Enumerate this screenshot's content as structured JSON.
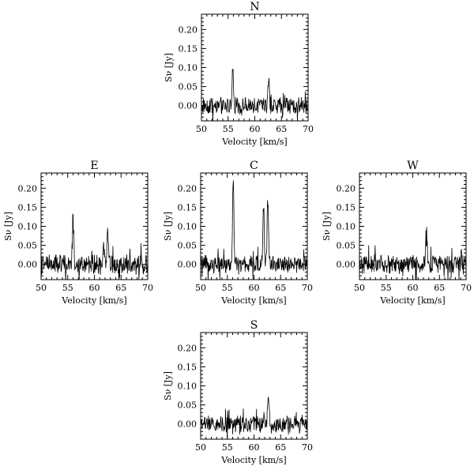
{
  "chart_data": [
    {
      "type": "line",
      "title": "N",
      "xlabel": "Velocity [km/s]",
      "ylabel": "Sν [Jy]",
      "xlim": [
        50,
        70
      ],
      "ylim": [
        -0.04,
        0.24
      ],
      "xticks": [
        "50",
        "55",
        "60",
        "65",
        "70"
      ],
      "yticks": [
        "0.00",
        "0.05",
        "0.10",
        "0.15",
        "0.20"
      ],
      "noise_amplitude": 0.012,
      "peaks": [
        {
          "v": 55.9,
          "h": 0.085
        },
        {
          "v": 62.6,
          "h": 0.06
        }
      ]
    },
    {
      "type": "line",
      "title": "E",
      "xlabel": "Velocity [km/s]",
      "ylabel": "Sν [Jy]",
      "xlim": [
        50,
        70
      ],
      "ylim": [
        -0.04,
        0.24
      ],
      "xticks": [
        "50",
        "55",
        "60",
        "65",
        "70"
      ],
      "yticks": [
        "0.00",
        "0.05",
        "0.10",
        "0.15",
        "0.20"
      ],
      "noise_amplitude": 0.014,
      "peaks": [
        {
          "v": 56.0,
          "h": 0.12
        },
        {
          "v": 61.7,
          "h": 0.06
        },
        {
          "v": 62.5,
          "h": 0.085
        }
      ]
    },
    {
      "type": "line",
      "title": "C",
      "xlabel": "Velocity [km/s]",
      "ylabel": "Sν [Jy]",
      "xlim": [
        50,
        70
      ],
      "ylim": [
        -0.04,
        0.24
      ],
      "xticks": [
        "50",
        "55",
        "60",
        "65",
        "70"
      ],
      "yticks": [
        "0.00",
        "0.05",
        "0.10",
        "0.15",
        "0.20"
      ],
      "noise_amplitude": 0.012,
      "peaks": [
        {
          "v": 56.1,
          "h": 0.22
        },
        {
          "v": 61.8,
          "h": 0.155
        },
        {
          "v": 62.6,
          "h": 0.175
        }
      ]
    },
    {
      "type": "line",
      "title": "W",
      "xlabel": "Velocity [km/s]",
      "ylabel": "Sν [Jy]",
      "xlim": [
        50,
        70
      ],
      "ylim": [
        -0.04,
        0.24
      ],
      "xticks": [
        "50",
        "55",
        "60",
        "65",
        "70"
      ],
      "yticks": [
        "0.00",
        "0.05",
        "0.10",
        "0.15",
        "0.20"
      ],
      "noise_amplitude": 0.013,
      "peaks": [
        {
          "v": 62.6,
          "h": 0.08
        }
      ]
    },
    {
      "type": "line",
      "title": "S",
      "xlabel": "Velocity [km/s]",
      "ylabel": "Sν [Jy]",
      "xlim": [
        50,
        70
      ],
      "ylim": [
        -0.04,
        0.24
      ],
      "xticks": [
        "50",
        "55",
        "60",
        "65",
        "70"
      ],
      "yticks": [
        "0.00",
        "0.05",
        "0.10",
        "0.15",
        "0.20"
      ],
      "noise_amplitude": 0.012,
      "peaks": [
        {
          "v": 62.7,
          "h": 0.09
        }
      ]
    }
  ]
}
